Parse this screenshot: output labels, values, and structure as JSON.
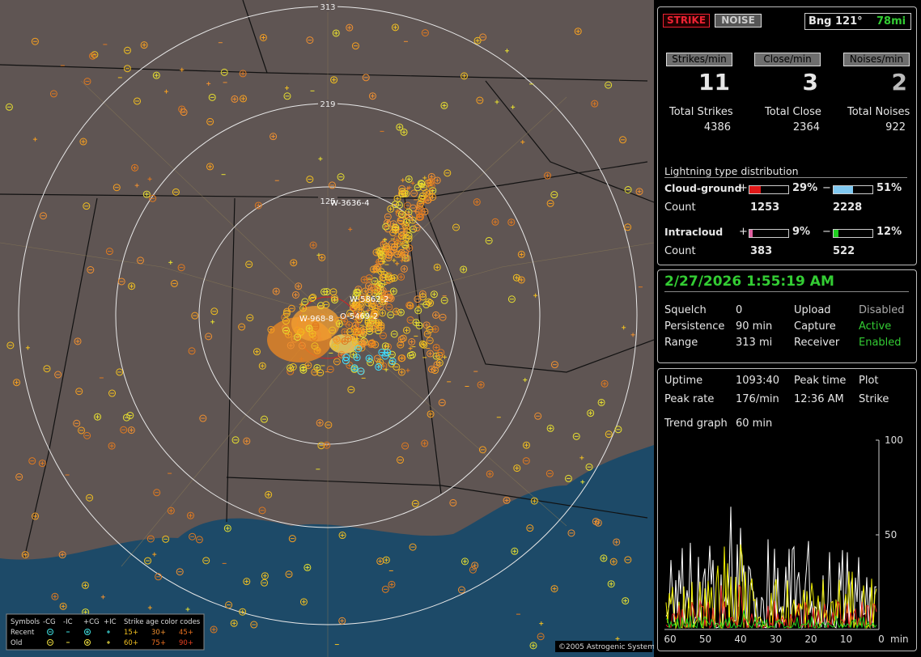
{
  "map": {
    "range_labels": [
      313,
      219,
      125
    ],
    "stations": [
      "W-3636-4",
      "W-5862-2",
      "W-968-8",
      "O-5469-2"
    ],
    "legend": {
      "title": "Symbols",
      "columns": [
        "-CG",
        "-IC",
        "+CG",
        "+IC"
      ],
      "age_title": "Strike age color codes",
      "rows": [
        {
          "label": "Recent",
          "ages": [
            "15+",
            "30+",
            "45+"
          ]
        },
        {
          "label": "Old",
          "ages": [
            "60+",
            "75+",
            "90+"
          ]
        }
      ]
    },
    "copyright": "©2005 Astrogenic Systems"
  },
  "panel": {
    "modes": [
      "STRIKE",
      "NOISE"
    ],
    "bearing": "Bng 121°",
    "distance": "78mi",
    "rates": [
      {
        "label": "Strikes/min",
        "value": 11
      },
      {
        "label": "Close/min",
        "value": 3
      },
      {
        "label": "Noises/min",
        "value": 2
      }
    ],
    "totals": [
      {
        "label": "Total Strikes",
        "value": 4386
      },
      {
        "label": "Total Close",
        "value": 2364
      },
      {
        "label": "Total Noises",
        "value": 922
      }
    ],
    "distribution": {
      "title": "Lightning type distribution",
      "count_label": "Count",
      "types": [
        {
          "name": "Cloud-ground",
          "plus": {
            "value": 29,
            "label": "29%"
          },
          "minus": {
            "value": 51,
            "label": "51%"
          },
          "counts": [
            1253,
            2228
          ]
        },
        {
          "name": "Intracloud",
          "plus": {
            "value": 9,
            "label": "9%"
          },
          "minus": {
            "value": 12,
            "label": "12%"
          },
          "counts": [
            383,
            522
          ]
        }
      ]
    },
    "datetime": "2/27/2026 1:55:19 AM",
    "settings": [
      [
        "Squelch",
        "0",
        "Upload",
        "Disabled"
      ],
      [
        "Persistence",
        "90 min",
        "Capture",
        "Active"
      ],
      [
        "Range",
        "313 mi",
        "Receiver",
        "Enabled"
      ]
    ],
    "stats": [
      [
        "Uptime",
        "1093:40",
        "Peak time",
        "Plot"
      ],
      [
        "Peak rate",
        "176/min",
        "12:36 AM",
        "Strike"
      ],
      [
        "Trend graph",
        "60 min"
      ]
    ],
    "trend": {
      "yticks": [
        100,
        50
      ],
      "xticks": [
        60,
        50,
        40,
        30,
        20,
        10,
        0
      ],
      "x_unit": "min"
    }
  }
}
